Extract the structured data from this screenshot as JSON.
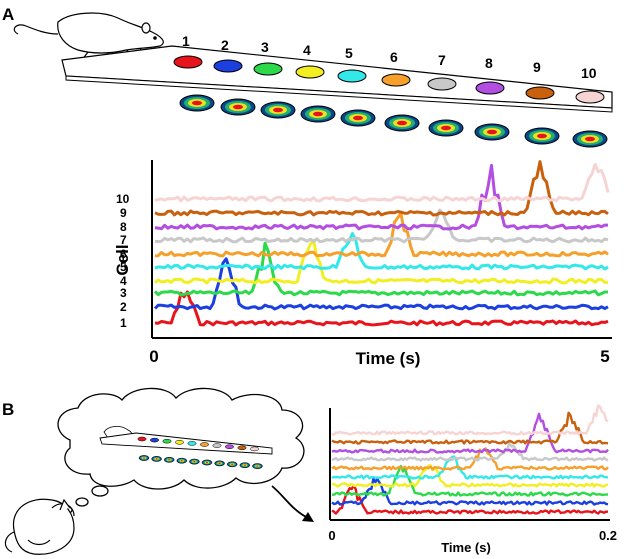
{
  "panel_a": {
    "label": "A",
    "track_numbers": [
      "1",
      "2",
      "3",
      "4",
      "5",
      "6",
      "7",
      "8",
      "9",
      "10"
    ],
    "plot": {
      "ylabel": "Cell",
      "xlabel": "Time (s)",
      "x_start": "0",
      "x_end": "5",
      "cell_labels": [
        "1",
        "2",
        "3",
        "4",
        "5",
        "6",
        "7",
        "8",
        "9",
        "10"
      ]
    }
  },
  "panel_b": {
    "label": "B",
    "plot": {
      "xlabel": "Time (s)",
      "x_start": "0",
      "x_end": "0.2"
    }
  },
  "cell_colors": [
    "#e8141c",
    "#1c3fe0",
    "#2cd94a",
    "#f2ee22",
    "#33e8e8",
    "#f5a02a",
    "#c8c8c8",
    "#b24ee0",
    "#c8600e",
    "#f7d4d4"
  ]
}
